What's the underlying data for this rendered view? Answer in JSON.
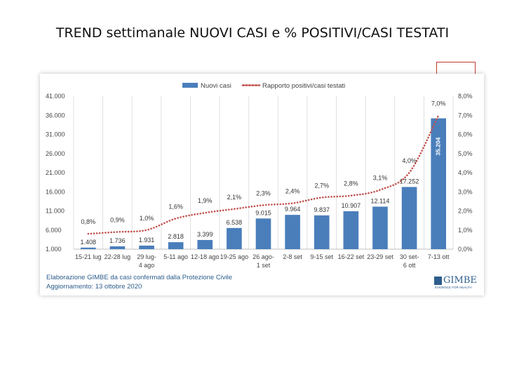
{
  "slide": {
    "title": "TREND settimanale NUOVI CASI  e  % POSITIVI/CASI TESTATI"
  },
  "footer": {
    "line1": "Elaborazione GIMBE da casi confermati dalla Protezione Civile",
    "line2": "Aggiornamento: 13 ottobre 2020",
    "logo_text": "GIMBE",
    "logo_tagline": "EVIDENCE FOR HEALTH"
  },
  "colors": {
    "bar": "#4a7ebb",
    "line": "#c0504d",
    "accent_box": "#c0392b",
    "logo": "#2d5d8c"
  },
  "chart_data": {
    "type": "bar",
    "title": "",
    "categories": [
      [
        "15-21 lug"
      ],
      [
        "22-28 lug"
      ],
      [
        "29 lug-",
        "4 ago"
      ],
      [
        "5-11 ago"
      ],
      [
        "12-18 ago"
      ],
      [
        "19-25 ago"
      ],
      [
        "26 ago-",
        "1 set"
      ],
      [
        "2-8 set"
      ],
      [
        "9-15 set"
      ],
      [
        "16-22 set"
      ],
      [
        "23-29 set"
      ],
      [
        "30 set-",
        "6 ott"
      ],
      [
        "7-13 ott"
      ]
    ],
    "series": [
      {
        "name": "Nuovi casi",
        "kind": "bar",
        "axis": "left",
        "values": [
          1408,
          1736,
          1931,
          2818,
          3399,
          6538,
          9015,
          9964,
          9837,
          10907,
          12114,
          17252,
          35204
        ],
        "labels": [
          "1.408",
          "1.736",
          "1.931",
          "2.818",
          "3.399",
          "6.538",
          "9.015",
          "9.964",
          "9.837",
          "10.907",
          "12.114",
          "17.252",
          "35.204"
        ]
      },
      {
        "name": "Rapporto positivi/casi testati",
        "kind": "line-dotted",
        "axis": "right",
        "values": [
          0.8,
          0.9,
          1.0,
          1.6,
          1.9,
          2.1,
          2.3,
          2.4,
          2.7,
          2.8,
          3.1,
          4.0,
          7.0
        ],
        "labels": [
          "0,8%",
          "0,9%",
          "1,0%",
          "1,6%",
          "1,9%",
          "2,1%",
          "2,3%",
          "2,4%",
          "2,7%",
          "2,8%",
          "3,1%",
          "4,0%",
          "7,0%"
        ]
      }
    ],
    "y_left": {
      "range": [
        1000,
        41000
      ],
      "ticks": [
        1000,
        6000,
        11000,
        16000,
        21000,
        26000,
        31000,
        36000,
        41000
      ],
      "tick_labels": [
        "1.000",
        "6.000",
        "11.000",
        "16.000",
        "21.000",
        "26.000",
        "31.000",
        "36.000",
        "41.000"
      ]
    },
    "y_right": {
      "range": [
        0,
        8
      ],
      "ticks": [
        0,
        1,
        2,
        3,
        4,
        5,
        6,
        7,
        8
      ],
      "tick_labels": [
        "0,0%",
        "1,0%",
        "2,0%",
        "3,0%",
        "4,0%",
        "5,0%",
        "6,0%",
        "7,0%",
        "8,0%"
      ]
    },
    "grid": "vertical",
    "legend_position": "top"
  }
}
